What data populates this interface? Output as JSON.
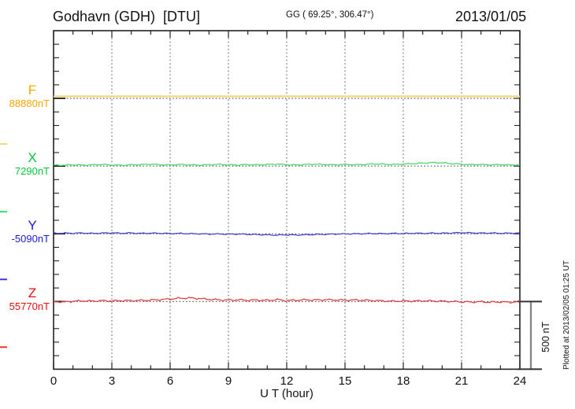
{
  "header": {
    "title": "Godhavn (GDH)  [DTU]",
    "coordinates": "GG ( 69.25°, 306.47°)",
    "date": "2013/01/05"
  },
  "footer": {
    "xlabel": "U T (hour)",
    "plotted_at": "Plotted at 2013/02/05 01:25 UT"
  },
  "scale_bar": {
    "label": "500 nT",
    "nT": 500
  },
  "chart_data": {
    "type": "line",
    "title": "Godhavn (GDH)  [DTU]",
    "coordinates_label": "GG ( 69.25°, 306.47°)",
    "date": "2013/01/05",
    "xlabel": "U T (hour)",
    "x_ticks": [
      0,
      3,
      6,
      9,
      12,
      15,
      18,
      21,
      24
    ],
    "x_range": [
      0,
      24
    ],
    "grid": "vertical dotted lines every 3 hours",
    "nT_per_minor_division": 100,
    "scale_bar_nT": 500,
    "sample_step_hours": 0.5,
    "series": [
      {
        "id": "F",
        "label": "F",
        "baseline_label": "88880nT",
        "baseline_nT": 88880,
        "label_color": "#FFA500",
        "trace_color": "#F0D87C",
        "noise_nT": 0,
        "offsets_nT": [
          15,
          15,
          15,
          15,
          15,
          15,
          15,
          15,
          15,
          15,
          15,
          15,
          15,
          15,
          15,
          15,
          15,
          15,
          15,
          15,
          15,
          15,
          15,
          15,
          15,
          15,
          15,
          15,
          15,
          15,
          15,
          15,
          15,
          15,
          15,
          15,
          15,
          15,
          15,
          15,
          15,
          15,
          15,
          15,
          15,
          15,
          15,
          15,
          15
        ]
      },
      {
        "id": "X",
        "label": "X",
        "baseline_label": "7290nT",
        "baseline_nT": 7290,
        "label_color": "#00C838",
        "trace_color": "#3BD95C",
        "noise_nT": 5,
        "offsets_nT": [
          8,
          6,
          10,
          7,
          9,
          12,
          8,
          6,
          9,
          11,
          14,
          10,
          8,
          12,
          9,
          7,
          10,
          13,
          9,
          8,
          11,
          9,
          12,
          15,
          10,
          8,
          12,
          14,
          11,
          9,
          13,
          10,
          12,
          16,
          14,
          12,
          15,
          18,
          22,
          26,
          24,
          18,
          14,
          10,
          12,
          9,
          11,
          8,
          10
        ]
      },
      {
        "id": "Y",
        "label": "Y",
        "baseline_label": "-5090nT",
        "baseline_nT": -5090,
        "label_color": "#1A1AD8",
        "trace_color": "#3A3ACC",
        "noise_nT": 5,
        "offsets_nT": [
          3,
          5,
          4,
          6,
          3,
          5,
          7,
          4,
          6,
          3,
          5,
          4,
          2,
          3,
          1,
          0,
          -2,
          -1,
          -3,
          -2,
          -4,
          -6,
          -8,
          -10,
          -8,
          -9,
          -7,
          -5,
          -4,
          -2,
          -1,
          0,
          1,
          2,
          1,
          3,
          2,
          4,
          3,
          5,
          4,
          6,
          8,
          7,
          5,
          6,
          4,
          5,
          5
        ]
      },
      {
        "id": "Z",
        "label": "Z",
        "baseline_label": "55770nT",
        "baseline_nT": 55770,
        "label_color": "#E80C0C",
        "trace_color": "#E23434",
        "noise_nT": 8,
        "offsets_nT": [
          0,
          -3,
          2,
          5,
          3,
          6,
          4,
          7,
          6,
          8,
          10,
          14,
          18,
          24,
          26,
          22,
          16,
          12,
          10,
          12,
          9,
          11,
          8,
          14,
          6,
          10,
          12,
          11,
          13,
          12,
          10,
          11,
          9,
          7,
          4,
          2,
          4,
          3,
          5,
          4,
          2,
          0,
          -2,
          -4,
          -2,
          -5,
          -3,
          -6,
          0
        ]
      }
    ]
  }
}
